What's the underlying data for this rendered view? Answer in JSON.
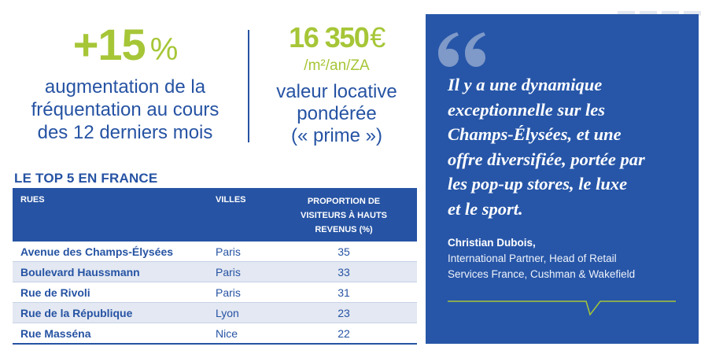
{
  "stat_frequentation": {
    "value": "+15",
    "unit": "%",
    "description": [
      "augmentation de la",
      "fréquentation au cours",
      "des 12 derniers mois"
    ]
  },
  "stat_loyer": {
    "value": "16 350",
    "currency": "€",
    "unit": "/m²/an/ZA",
    "description": [
      "valeur locative",
      "pondérée",
      "(« prime »)"
    ]
  },
  "table": {
    "title": "LE TOP 5 EN FRANCE",
    "headers": {
      "rues": "RUES",
      "villes": "VILLES",
      "proportion": [
        "PROPORTION DE",
        "VISITEURS À HAUTS",
        "REVENUS (%)"
      ]
    },
    "rows": [
      {
        "rue": "Avenue des Champs-Élysées",
        "ville": "Paris",
        "proportion": "35"
      },
      {
        "rue": "Boulevard Haussmann",
        "ville": "Paris",
        "proportion": "33"
      },
      {
        "rue": "Rue de Rivoli",
        "ville": "Paris",
        "proportion": "31"
      },
      {
        "rue": "Rue de la République",
        "ville": "Lyon",
        "proportion": "23"
      },
      {
        "rue": "Rue Masséna",
        "ville": "Nice",
        "proportion": "22"
      }
    ]
  },
  "quote": {
    "lines": [
      "Il y a une dynamique",
      "exceptionnelle sur les",
      "Champs-Élysées, et une",
      "offre diversifiée, portée par",
      "les pop-up stores, le luxe",
      "et le sport."
    ],
    "author": "Christian Dubois,",
    "role_lines": [
      "International Partner, Head of Retail",
      "Services France, Cushman & Wakefield"
    ]
  },
  "colors": {
    "accent_green": "#a6c637",
    "brand_blue": "#2653a3",
    "quote_background": "#2756a8",
    "quote_mark": "#7f99c8",
    "row_alt": "#e3e8f2"
  },
  "icons": {
    "quote_mark": "opening-quote-icon",
    "speech_bubble": "speech-bubble-tail-icon"
  }
}
